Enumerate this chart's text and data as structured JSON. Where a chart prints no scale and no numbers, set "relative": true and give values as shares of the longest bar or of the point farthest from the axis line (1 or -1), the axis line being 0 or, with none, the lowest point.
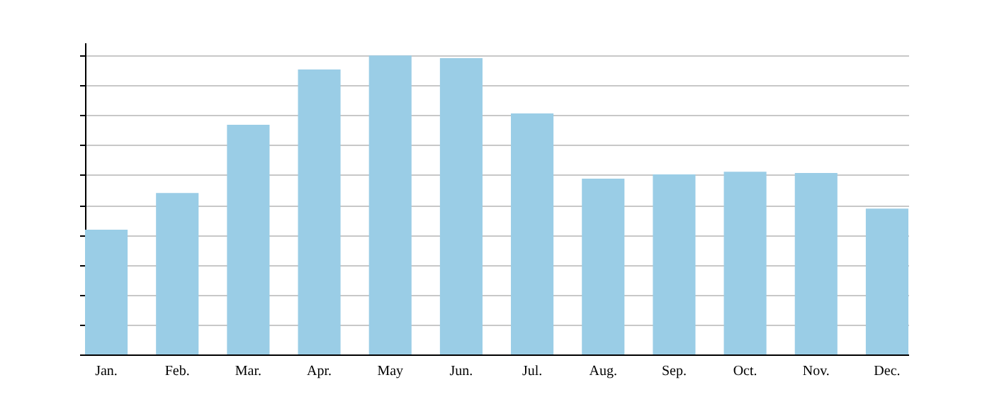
{
  "chart_data": {
    "type": "bar",
    "relative": true,
    "grid": "y",
    "color": "#9acde6",
    "categories": [
      "Jan.",
      "Feb.",
      "Mar.",
      "Apr.",
      "May",
      "Jun.",
      "Jul.",
      "Aug.",
      "Sep.",
      "Oct.",
      "Nov.",
      "Dec."
    ],
    "values": [
      0.417,
      0.54,
      0.768,
      0.953,
      1,
      0.991,
      0.806,
      0.588,
      0.602,
      0.611,
      0.607,
      0.488
    ]
  }
}
